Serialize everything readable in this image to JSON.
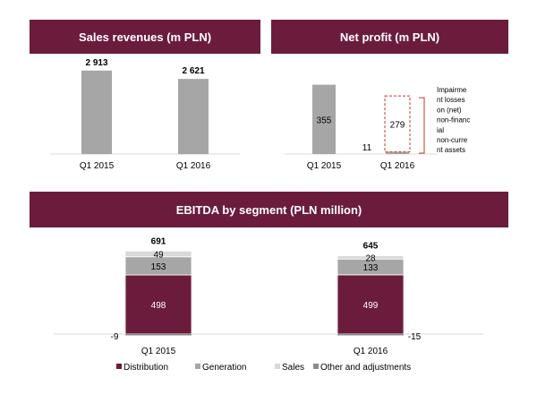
{
  "colors": {
    "banner": "#6b1c3d",
    "distribution": "#6b1c3d",
    "generation": "#a6a6a6",
    "sales": "#d9d9d9",
    "other": "#8c8c8c",
    "gray_bar": "#a6a6a6",
    "impairment_box": "#c0392b"
  },
  "chart_data": [
    {
      "type": "bar",
      "title": "Sales revenues (m PLN)",
      "categories": [
        "Q1 2015",
        "Q1 2016"
      ],
      "values": [
        2913,
        2621
      ],
      "value_labels": [
        "2 913",
        "2 621"
      ],
      "ylim": [
        0,
        3500
      ],
      "grid": false,
      "xlabel": "",
      "ylabel": ""
    },
    {
      "type": "bar",
      "title": "Net profit (m PLN)",
      "categories": [
        "Q1 2015",
        "Q1 2016"
      ],
      "series": [
        {
          "values": [
            355,
            11
          ]
        },
        {
          "name": "Impairment losses on (net) non-financial non-current assets",
          "values": [
            0,
            279
          ]
        }
      ],
      "value_labels": {
        "q1_2015": "355",
        "q1_2016": "11",
        "impairment": "279"
      },
      "annotation_lines": [
        "Impairme",
        "nt losses",
        "on (net)",
        "non-financ",
        "ial",
        "non-curre",
        "nt assets"
      ],
      "ylim": [
        0,
        400
      ],
      "grid": false,
      "xlabel": "",
      "ylabel": ""
    },
    {
      "type": "bar",
      "title": "EBITDA by segment (PLN million)",
      "categories": [
        "Q1 2015",
        "Q1 2016"
      ],
      "totals": [
        691,
        645
      ],
      "series": [
        {
          "name": "Distribution",
          "values": [
            498,
            499
          ]
        },
        {
          "name": "Generation",
          "values": [
            153,
            133
          ]
        },
        {
          "name": "Sales",
          "values": [
            49,
            28
          ]
        },
        {
          "name": "Other and adjustments",
          "values": [
            -9,
            -15
          ]
        }
      ],
      "ylim": [
        -20,
        750
      ],
      "grid": false,
      "legend_position": "bottom",
      "xlabel": "",
      "ylabel": ""
    }
  ]
}
